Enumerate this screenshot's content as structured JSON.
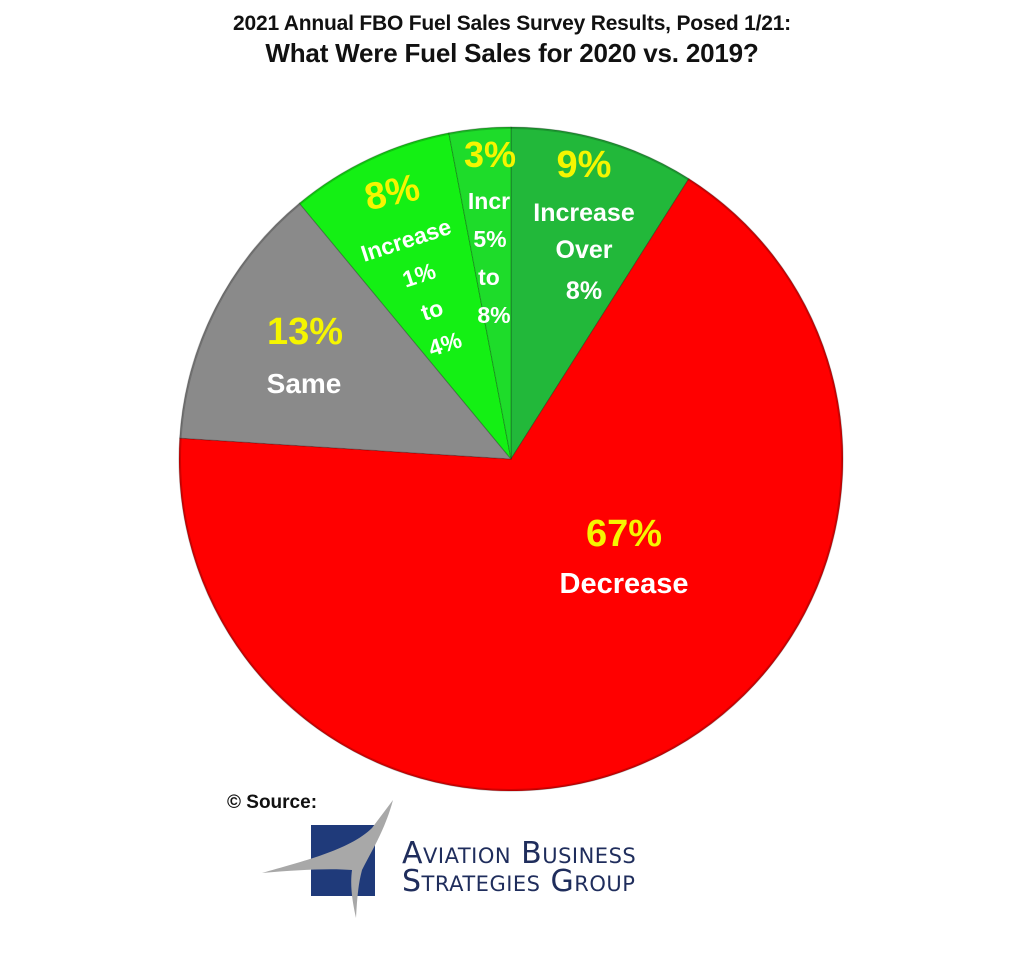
{
  "title": {
    "line1": "2021 Annual FBO Fuel Sales Survey Results, Posed 1/21:",
    "line2": "What Were Fuel Sales for 2020 vs. 2019?"
  },
  "chart_data": {
    "type": "pie",
    "title": "2021 Annual FBO Fuel Sales Survey Results, Posed 1/21: What Were Fuel Sales for 2020 vs. 2019?",
    "categories": [
      "Increase Over 8%",
      "Decrease",
      "Same",
      "Increase 1% to 4%",
      "Incr 5% to 8%"
    ],
    "values": [
      9,
      67,
      13,
      8,
      3
    ],
    "unit": "%",
    "start_angle_deg": 0,
    "direction": "clockwise",
    "colors": [
      "#22b83a",
      "#ff0000",
      "#8a8a8a",
      "#14f014",
      "#1edc2a"
    ],
    "legend": "none (labels inside slices)",
    "slices": [
      {
        "pct_label": "9%",
        "label_lines": [
          "Increase",
          "Over",
          "8%"
        ]
      },
      {
        "pct_label": "67%",
        "label_lines": [
          "Decrease"
        ]
      },
      {
        "pct_label": "13%",
        "label_lines": [
          "Same"
        ]
      },
      {
        "pct_label": "8%",
        "label_lines": [
          "Increase",
          "1%",
          "to",
          "4%"
        ]
      },
      {
        "pct_label": "3%",
        "label_lines": [
          "Incr",
          "5%",
          "to",
          "8%"
        ]
      }
    ]
  },
  "labels": {
    "pct_color": "#f5f500",
    "text_color": "#ffffff"
  },
  "source": {
    "label": "© Source:",
    "logo_line1": "Aviation Business",
    "logo_line2": "Strategies Group",
    "logo_color": "#1f2d5c",
    "swoosh_color": "#a8a8a8"
  }
}
